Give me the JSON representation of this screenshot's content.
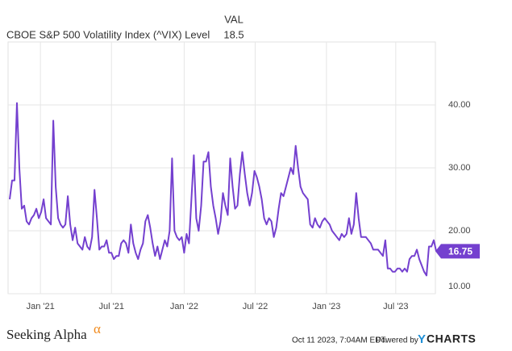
{
  "header": {
    "column": "VAL"
  },
  "chart_data": {
    "type": "line",
    "series": [
      {
        "name": "CBOE S&P 500 Volatility Index (^VIX) Level",
        "color": "#7440cf",
        "values": [
          25,
          28,
          28,
          40.3,
          30,
          23.5,
          24,
          21.5,
          21,
          22,
          22.5,
          23.5,
          22,
          23,
          25,
          22,
          21.5,
          21,
          37.5,
          27,
          22,
          21,
          20.5,
          21,
          25.5,
          21,
          18.5,
          20.5,
          18,
          17.5,
          17,
          19,
          17.5,
          17,
          19,
          26.5,
          22,
          17,
          17.5,
          17.5,
          18.5,
          16.5,
          16.5,
          15.5,
          16,
          16,
          18,
          18.5,
          18,
          16.5,
          21,
          18,
          16.5,
          15.5,
          17,
          18,
          21.5,
          22.5,
          20.5,
          18,
          16,
          17.5,
          15.5,
          17,
          18.5,
          17.5,
          20,
          31.5,
          20,
          19,
          18.5,
          19,
          16.5,
          19.5,
          18,
          25,
          32,
          22,
          20,
          24,
          31,
          31,
          32.5,
          27,
          24,
          22,
          19.5,
          21.5,
          26,
          24,
          22.5,
          31.5,
          27,
          23.5,
          24,
          29,
          32.5,
          29,
          26,
          24,
          26,
          29.5,
          28.5,
          27,
          25,
          22,
          21,
          22,
          21.5,
          19,
          20.5,
          23.5,
          26,
          25.5,
          27,
          28.5,
          30,
          29,
          33.5,
          30,
          27,
          26,
          25.5,
          25,
          21,
          20.5,
          22,
          21,
          20.5,
          21.5,
          22,
          21.5,
          21,
          20,
          19.5,
          19,
          18.5,
          19.5,
          19,
          19.5,
          22,
          19.5,
          21,
          26,
          22,
          19,
          19,
          19,
          18.5,
          18,
          17,
          17,
          17,
          16.5,
          16,
          18.5,
          14,
          14,
          13.5,
          13.5,
          14,
          14,
          13.5,
          14,
          13.5,
          15.5,
          16,
          16,
          17,
          15.5,
          14.5,
          13.5,
          12.9,
          17.5,
          17.5,
          18.5,
          16.75
        ]
      }
    ],
    "xlim": [
      0,
      175
    ],
    "xticks": [
      {
        "value": 12.7,
        "label": "Jan '21"
      },
      {
        "value": 42,
        "label": "Jul '21"
      },
      {
        "value": 72,
        "label": "Jan '22"
      },
      {
        "value": 101.3,
        "label": "Jul '22"
      },
      {
        "value": 130.7,
        "label": "Jan '23"
      },
      {
        "value": 159.3,
        "label": "Jul '23"
      }
    ],
    "ylim": [
      10,
      50
    ],
    "yticks": [
      {
        "value": 10,
        "label": "10.00"
      },
      {
        "value": 20,
        "label": "20.00"
      },
      {
        "value": 30,
        "label": "30.00"
      },
      {
        "value": 40,
        "label": "40.00"
      }
    ],
    "grid": true
  },
  "footer": {
    "brand": "Seeking Alpha",
    "brand_mark": "α",
    "timestamp": "Oct 11 2023, 7:04AM EDT.",
    "powered": "Powered by",
    "provider_initial": "Y",
    "provider_rest": "CHARTS"
  }
}
